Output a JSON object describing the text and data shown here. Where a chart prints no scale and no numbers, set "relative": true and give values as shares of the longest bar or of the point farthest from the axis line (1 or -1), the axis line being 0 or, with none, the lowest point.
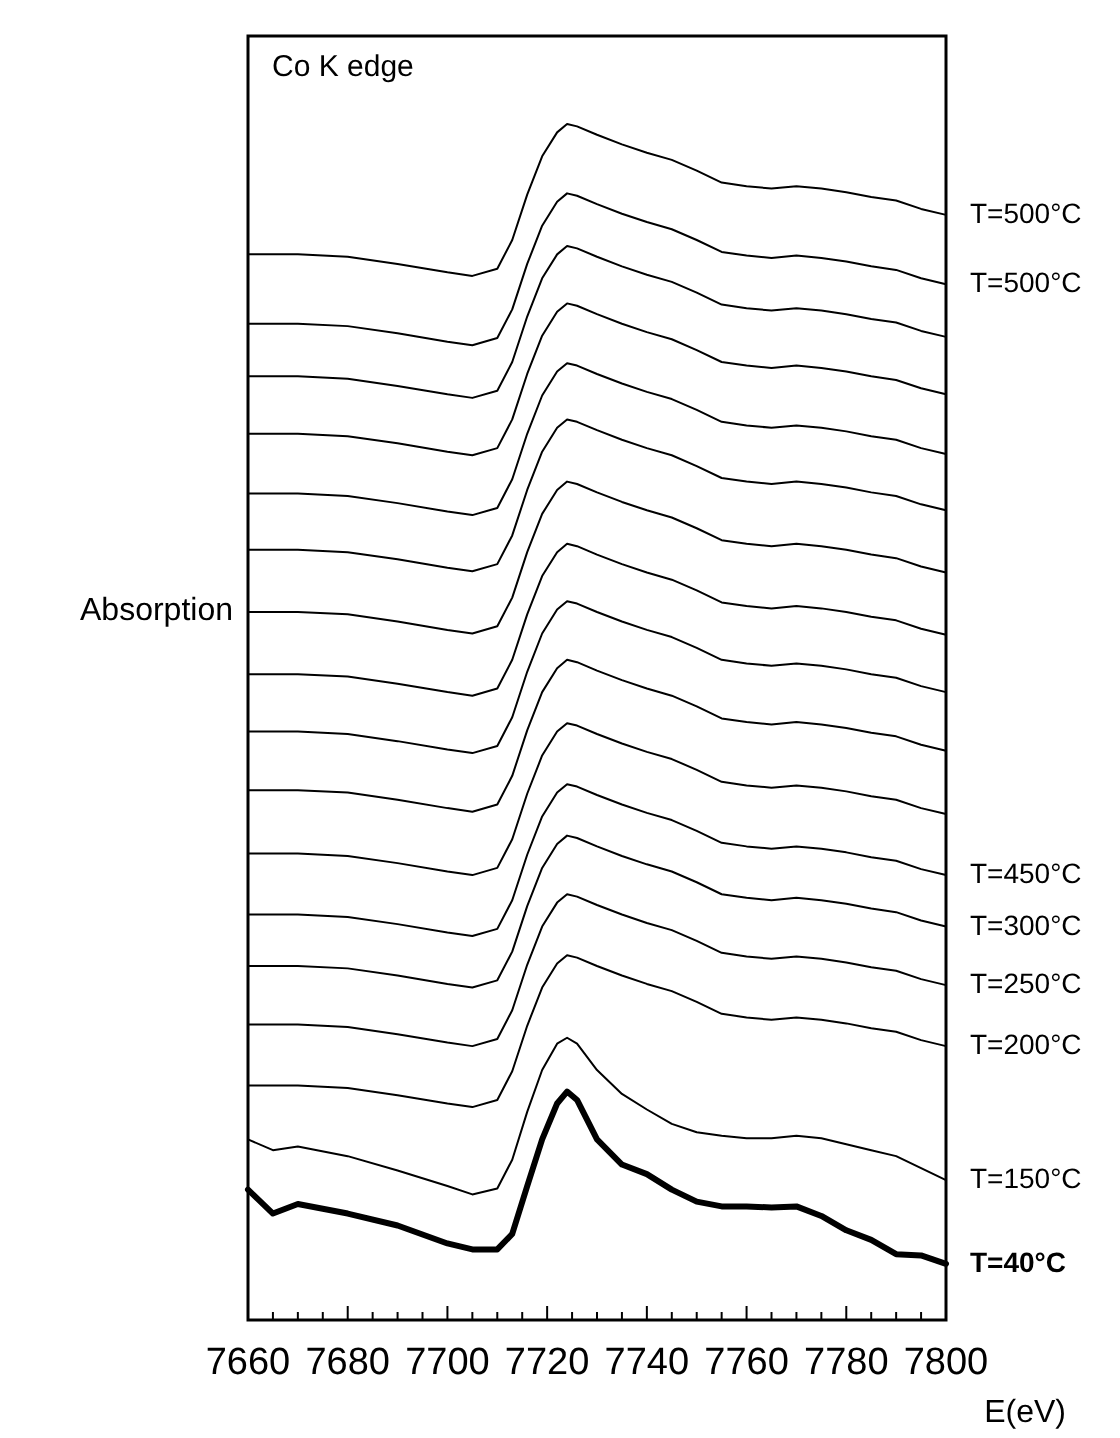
{
  "chart_data": {
    "type": "line",
    "relative": true,
    "title": "Co K edge",
    "xlabel": "E(eV)",
    "ylabel": "Absorption",
    "x": [
      7660,
      7665,
      7670,
      7680,
      7690,
      7700,
      7705,
      7710,
      7713,
      7716,
      7719,
      7722,
      7724,
      7726,
      7730,
      7735,
      7740,
      7745,
      7750,
      7755,
      7760,
      7765,
      7770,
      7775,
      7780,
      7785,
      7790,
      7795,
      7800
    ],
    "xlim": [
      7660,
      7800
    ],
    "xticks": [
      7660,
      {
        "value": 7665,
        "label": null
      },
      {
        "value": 7670,
        "label": null
      },
      {
        "value": 7675,
        "label": null
      },
      7680,
      {
        "value": 7685,
        "label": null
      },
      {
        "value": 7690,
        "label": null
      },
      {
        "value": 7695,
        "label": null
      },
      7700,
      {
        "value": 7705,
        "label": null
      },
      {
        "value": 7710,
        "label": null
      },
      {
        "value": 7715,
        "label": null
      },
      7720,
      {
        "value": 7725,
        "label": null
      },
      {
        "value": 7730,
        "label": null
      },
      {
        "value": 7735,
        "label": null
      },
      7740,
      {
        "value": 7745,
        "label": null
      },
      {
        "value": 7750,
        "label": null
      },
      {
        "value": 7755,
        "label": null
      },
      7760,
      {
        "value": 7765,
        "label": null
      },
      {
        "value": 7770,
        "label": null
      },
      {
        "value": 7775,
        "label": null
      },
      7780,
      {
        "value": 7785,
        "label": null
      },
      {
        "value": 7790,
        "label": null
      },
      {
        "value": 7795,
        "label": null
      },
      7800
    ],
    "grid": false,
    "marker": "none",
    "line_style": "solid",
    "series": [
      {
        "name": "T=500°C",
        "color": "#000000",
        "values": [
          0.891,
          0.891,
          0.891,
          0.889,
          0.883,
          0.876,
          0.873,
          0.879,
          0.903,
          0.941,
          0.973,
          0.993,
          1.0,
          0.998,
          0.991,
          0.983,
          0.976,
          0.97,
          0.961,
          0.951,
          0.948,
          0.946,
          0.948,
          0.946,
          0.943,
          0.939,
          0.936,
          0.929,
          0.924
        ]
      },
      {
        "name": "T=500°C",
        "color": "#000000",
        "values": [
          0.833,
          0.833,
          0.833,
          0.831,
          0.825,
          0.818,
          0.815,
          0.821,
          0.845,
          0.883,
          0.915,
          0.935,
          0.942,
          0.94,
          0.933,
          0.925,
          0.918,
          0.912,
          0.903,
          0.893,
          0.89,
          0.888,
          0.89,
          0.888,
          0.885,
          0.881,
          0.878,
          0.871,
          0.866
        ]
      },
      {
        "color": "#000000",
        "values": [
          0.789,
          0.789,
          0.789,
          0.787,
          0.781,
          0.774,
          0.771,
          0.777,
          0.801,
          0.839,
          0.871,
          0.891,
          0.898,
          0.896,
          0.889,
          0.881,
          0.874,
          0.868,
          0.859,
          0.849,
          0.846,
          0.844,
          0.846,
          0.844,
          0.841,
          0.837,
          0.834,
          0.827,
          0.822
        ]
      },
      {
        "color": "#000000",
        "values": [
          0.741,
          0.741,
          0.741,
          0.739,
          0.733,
          0.726,
          0.723,
          0.729,
          0.753,
          0.791,
          0.823,
          0.843,
          0.85,
          0.848,
          0.841,
          0.833,
          0.826,
          0.82,
          0.811,
          0.801,
          0.798,
          0.796,
          0.798,
          0.796,
          0.793,
          0.789,
          0.786,
          0.779,
          0.774
        ]
      },
      {
        "color": "#000000",
        "values": [
          0.691,
          0.691,
          0.691,
          0.689,
          0.683,
          0.676,
          0.673,
          0.679,
          0.703,
          0.741,
          0.773,
          0.793,
          0.8,
          0.798,
          0.791,
          0.783,
          0.776,
          0.77,
          0.761,
          0.751,
          0.748,
          0.746,
          0.748,
          0.746,
          0.743,
          0.739,
          0.736,
          0.729,
          0.724
        ]
      },
      {
        "color": "#000000",
        "values": [
          0.644,
          0.644,
          0.644,
          0.642,
          0.636,
          0.629,
          0.626,
          0.632,
          0.656,
          0.694,
          0.726,
          0.746,
          0.753,
          0.751,
          0.744,
          0.736,
          0.729,
          0.723,
          0.714,
          0.704,
          0.701,
          0.699,
          0.701,
          0.699,
          0.696,
          0.692,
          0.689,
          0.682,
          0.677
        ]
      },
      {
        "color": "#000000",
        "values": [
          0.592,
          0.592,
          0.592,
          0.59,
          0.584,
          0.577,
          0.574,
          0.58,
          0.604,
          0.642,
          0.674,
          0.694,
          0.701,
          0.699,
          0.692,
          0.684,
          0.677,
          0.671,
          0.662,
          0.652,
          0.649,
          0.647,
          0.649,
          0.647,
          0.644,
          0.64,
          0.637,
          0.63,
          0.625
        ]
      },
      {
        "color": "#000000",
        "values": [
          0.54,
          0.54,
          0.54,
          0.538,
          0.532,
          0.525,
          0.522,
          0.528,
          0.552,
          0.59,
          0.622,
          0.642,
          0.649,
          0.647,
          0.64,
          0.632,
          0.625,
          0.619,
          0.61,
          0.6,
          0.597,
          0.595,
          0.597,
          0.595,
          0.592,
          0.588,
          0.585,
          0.578,
          0.573
        ]
      },
      {
        "color": "#000000",
        "values": [
          0.492,
          0.492,
          0.492,
          0.49,
          0.484,
          0.477,
          0.474,
          0.48,
          0.504,
          0.542,
          0.574,
          0.594,
          0.601,
          0.599,
          0.592,
          0.584,
          0.577,
          0.571,
          0.562,
          0.552,
          0.549,
          0.547,
          0.549,
          0.547,
          0.544,
          0.54,
          0.537,
          0.53,
          0.525
        ]
      },
      {
        "color": "#000000",
        "values": [
          0.443,
          0.443,
          0.443,
          0.441,
          0.435,
          0.428,
          0.425,
          0.431,
          0.455,
          0.493,
          0.525,
          0.545,
          0.552,
          0.55,
          0.543,
          0.535,
          0.528,
          0.522,
          0.513,
          0.503,
          0.5,
          0.498,
          0.5,
          0.498,
          0.495,
          0.491,
          0.488,
          0.481,
          0.476
        ]
      },
      {
        "color": "#000000",
        "values": [
          0.39,
          0.39,
          0.39,
          0.388,
          0.382,
          0.375,
          0.372,
          0.378,
          0.402,
          0.44,
          0.472,
          0.492,
          0.499,
          0.497,
          0.49,
          0.482,
          0.475,
          0.469,
          0.46,
          0.45,
          0.447,
          0.445,
          0.447,
          0.445,
          0.442,
          0.438,
          0.435,
          0.428,
          0.423
        ]
      },
      {
        "name": "T=450°C",
        "color": "#000000",
        "values": [
          0.339,
          0.339,
          0.339,
          0.337,
          0.331,
          0.324,
          0.321,
          0.327,
          0.351,
          0.389,
          0.421,
          0.441,
          0.448,
          0.446,
          0.439,
          0.431,
          0.424,
          0.418,
          0.409,
          0.399,
          0.396,
          0.394,
          0.396,
          0.394,
          0.391,
          0.387,
          0.384,
          0.377,
          0.372
        ]
      },
      {
        "name": "T=300°C",
        "color": "#000000",
        "values": [
          0.296,
          0.296,
          0.296,
          0.294,
          0.288,
          0.281,
          0.278,
          0.284,
          0.308,
          0.346,
          0.378,
          0.398,
          0.405,
          0.403,
          0.396,
          0.388,
          0.381,
          0.375,
          0.366,
          0.356,
          0.353,
          0.351,
          0.353,
          0.351,
          0.348,
          0.344,
          0.341,
          0.334,
          0.329
        ]
      },
      {
        "name": "T=250°C",
        "color": "#000000",
        "values": [
          0.247,
          0.247,
          0.247,
          0.245,
          0.239,
          0.232,
          0.229,
          0.235,
          0.259,
          0.297,
          0.329,
          0.349,
          0.356,
          0.354,
          0.347,
          0.339,
          0.332,
          0.326,
          0.317,
          0.307,
          0.304,
          0.302,
          0.304,
          0.302,
          0.299,
          0.295,
          0.292,
          0.285,
          0.28
        ]
      },
      {
        "name": "T=200°C",
        "color": "#000000",
        "values": [
          0.196,
          0.196,
          0.196,
          0.194,
          0.188,
          0.181,
          0.178,
          0.184,
          0.208,
          0.246,
          0.278,
          0.298,
          0.305,
          0.303,
          0.296,
          0.288,
          0.281,
          0.275,
          0.266,
          0.256,
          0.253,
          0.251,
          0.253,
          0.251,
          0.248,
          0.244,
          0.241,
          0.234,
          0.229
        ]
      },
      {
        "name": "T=150°C",
        "color": "#000000",
        "values": [
          0.151,
          0.142,
          0.145,
          0.137,
          0.125,
          0.112,
          0.105,
          0.11,
          0.134,
          0.174,
          0.209,
          0.231,
          0.236,
          0.231,
          0.209,
          0.189,
          0.176,
          0.164,
          0.157,
          0.154,
          0.152,
          0.152,
          0.154,
          0.152,
          0.147,
          0.142,
          0.137,
          0.127,
          0.117
        ]
      },
      {
        "name": "T=40°C",
        "color": "#000000",
        "values": [
          0.109,
          0.089,
          0.097,
          0.089,
          0.079,
          0.064,
          0.059,
          0.059,
          0.072,
          0.112,
          0.151,
          0.181,
          0.191,
          0.184,
          0.151,
          0.13,
          0.122,
          0.109,
          0.099,
          0.095,
          0.095,
          0.094,
          0.095,
          0.087,
          0.075,
          0.067,
          0.055,
          0.054,
          0.047
        ]
      }
    ]
  }
}
